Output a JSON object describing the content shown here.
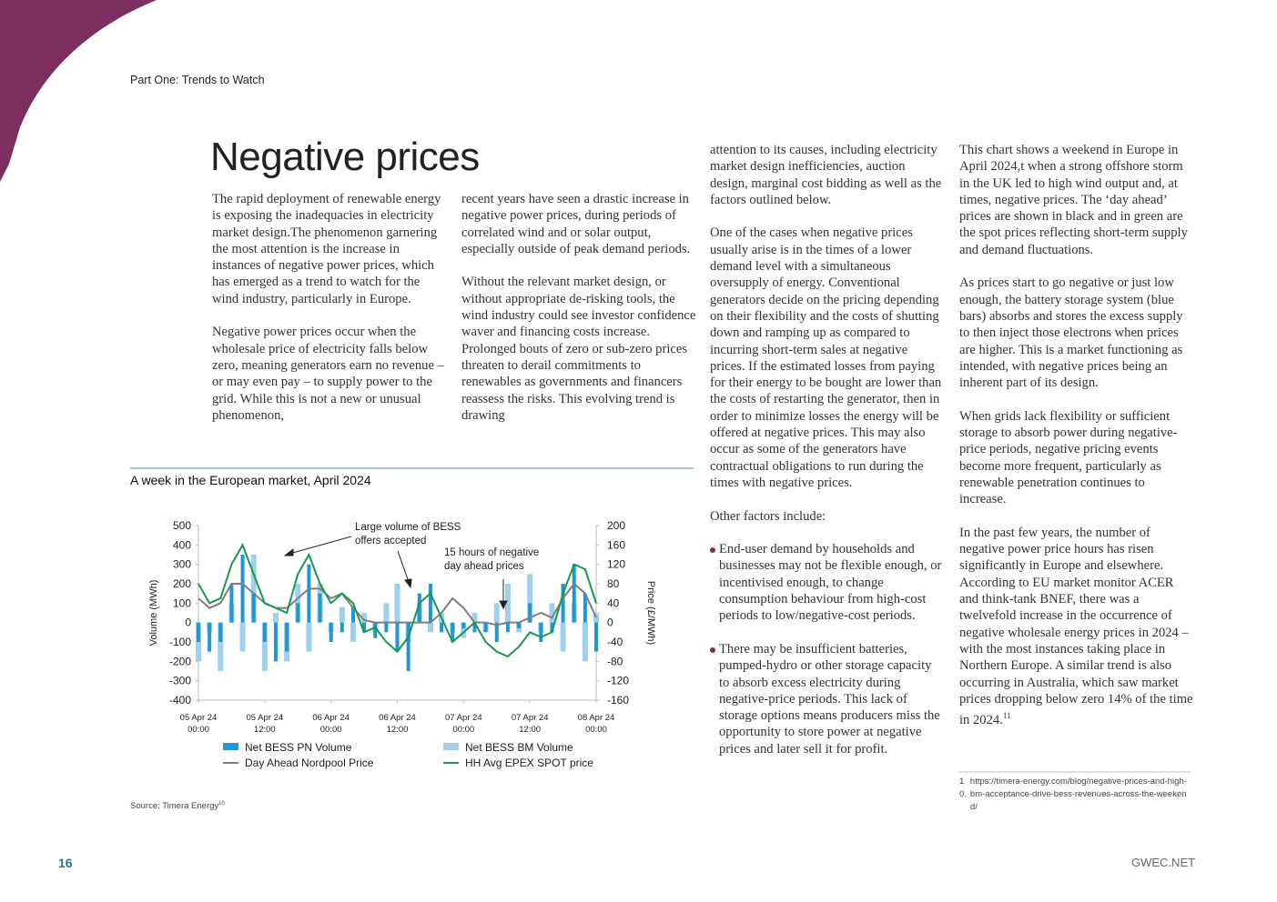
{
  "header": "Part One: Trends to Watch",
  "title": "Negative prices",
  "columns": [
    {
      "blocks": [
        {
          "text": "The rapid deployment of renewable energy is exposing the inadequacies in electricity market design.The phenomenon garnering the most attention is the increase in instances of negative power prices, which has emerged as a trend to watch for the wind industry, particularly in Europe."
        },
        {
          "text": "Negative power prices occur when the wholesale price of electricity falls below zero, meaning generators earn no revenue – or may even pay – to supply power to the grid. While this is not a new or unusual phenomenon,"
        }
      ]
    },
    {
      "blocks": [
        {
          "text": "recent years have seen a drastic increase in negative power prices, during periods of correlated wind and or solar output, especially outside of peak demand periods."
        },
        {
          "text": "Without the relevant market design, or without appropriate de-risking tools, the wind industry could see investor confidence waver and financing costs increase. Prolonged bouts of zero or sub-zero prices threaten to derail commitments to renewables as governments and financers reassess the risks. This evolving trend is drawing"
        }
      ]
    },
    {
      "blocks": [
        {
          "text": "attention to its causes, including electricity market design inefficiencies, auction design, marginal cost bidding as well as the factors outlined below."
        },
        {
          "text": "One of the cases when negative prices usually arise is in the times of a lower demand level with a simultaneous oversupply of energy. Conventional generators decide on the pricing depending on their flexibility and the costs of shutting down and ramping up as compared to incurring short-term sales at negative prices. If the estimated losses from paying for their energy to be bought are lower than the costs of restarting the generator, then in order to minimize losses the energy will be offered at negative prices. This may also occur as some of the generators have contractual obligations to run during the times with negative prices."
        },
        {
          "text": "Other factors include:"
        },
        {
          "bullet": "End-user demand by households and businesses may not be flexible enough, or incentivised enough, to change consumption behaviour from high-cost periods to low/negative-cost periods."
        },
        {
          "bullet": "There may be insufficient batteries, pumped-hydro or other storage capacity to absorb excess electricity during negative-price periods. This lack of storage options means producers miss the opportunity to store power at negative prices and later sell it for profit."
        }
      ]
    },
    {
      "blocks": [
        {
          "text": "This chart shows a weekend in Europe in April 2024,t when a strong offshore storm in the UK led to high wind output and, at times, negative prices. The ‘day ahead’ prices are shown in black and in green are the spot prices reflecting short-term supply and demand fluctuations."
        },
        {
          "text": "As prices start to go negative or just low enough, the battery storage system (blue bars) absorbs and stores the excess supply to then inject those electrons when prices are higher. This is a market functioning as intended, with negative prices being an inherent part of its design."
        },
        {
          "text": "When grids lack flexibility or sufficient storage to absorb power during negative-price periods, negative pricing events become more frequent, particularly as renewable penetration continues to increase."
        },
        {
          "text": "In the past few years, the number of negative power price hours has risen significantly in Europe and elsewhere. According to EU market monitor ACER and think-tank BNEF, there was a twelvefold increase in the occurrence of negative wholesale energy prices in 2024 – with the most instances taking place in Northern Europe. A similar trend is also occurring in Australia, which saw market prices dropping below zero 14% of the time in 2024.",
          "sup": "11"
        }
      ]
    }
  ],
  "footnote": {
    "number": "10.",
    "text": "https://timera-energy.com/blog/negative-prices-and-high-bm-acceptance-drive-bess-revenues-across-the-weekend/"
  },
  "page_number": "16",
  "site": "GWEC.NET",
  "chart_data": {
    "type": "bar",
    "title": "A week in the European market, April 2024",
    "y_label": "Volume (MWh)",
    "y2_label": "Price (£/MWh)",
    "source": "Source: Timera Energy",
    "source_ref": "10",
    "annotations": [
      "Large volume of BESS offers accepted",
      "15 hours of negative day ahead prices"
    ],
    "x": [
      0,
      2,
      4,
      6,
      8,
      10,
      12,
      14,
      16,
      18,
      20,
      22,
      24,
      26,
      28,
      30,
      32,
      34,
      36,
      38,
      40,
      42,
      44,
      46,
      48,
      50,
      52,
      54,
      56,
      58,
      60,
      62,
      64,
      66,
      68,
      70,
      72
    ],
    "xlim": [
      0,
      72
    ],
    "xticks": [
      {
        "value": 0,
        "label": "05 Apr 24\n00:00"
      },
      {
        "value": 12,
        "label": "05 Apr 24\n12:00"
      },
      {
        "value": 24,
        "label": "06 Apr 24\n00:00"
      },
      {
        "value": 36,
        "label": "06 Apr 24\n12:00"
      },
      {
        "value": 48,
        "label": "07 Apr 24\n00:00"
      },
      {
        "value": 60,
        "label": "07 Apr 24\n12:00"
      },
      {
        "value": 72,
        "label": "08 Apr 24\n00:00"
      }
    ],
    "ylim": [
      -400,
      500
    ],
    "yticks": [
      -400,
      -300,
      -200,
      -100,
      0,
      100,
      200,
      300,
      400,
      500
    ],
    "y2lim": [
      -160,
      200
    ],
    "y2ticks": [
      -160,
      -120,
      -80,
      -40,
      0,
      40,
      80,
      120,
      160,
      200
    ],
    "series": [
      {
        "name": "Net BESS BM Volume",
        "type": "bar",
        "color": "#9fd0ee",
        "values": [
          -200,
          -50,
          -250,
          100,
          -150,
          350,
          -250,
          50,
          -200,
          200,
          -150,
          200,
          -50,
          80,
          -100,
          50,
          -50,
          100,
          200,
          -100,
          100,
          -50,
          50,
          -50,
          -80,
          50,
          -50,
          100,
          200,
          -50,
          250,
          -50,
          100,
          -150,
          100,
          -200,
          50
        ]
      },
      {
        "name": "Net BESS PN Volume",
        "type": "bar",
        "color": "#1f97d3",
        "values": [
          -100,
          -150,
          -100,
          200,
          350,
          150,
          -100,
          -200,
          -150,
          100,
          300,
          150,
          -100,
          -50,
          80,
          -50,
          -80,
          -50,
          -150,
          -250,
          150,
          200,
          -50,
          -100,
          -30,
          -50,
          -50,
          -100,
          -50,
          -30,
          100,
          -100,
          -50,
          200,
          300,
          150,
          -150
        ]
      },
      {
        "name": "Day Ahead Nordpool Price",
        "type": "line",
        "axis": "y2",
        "color": "#7f7f7f",
        "values": [
          50,
          30,
          40,
          80,
          80,
          60,
          40,
          30,
          30,
          50,
          70,
          70,
          50,
          60,
          30,
          5,
          0,
          0,
          0,
          0,
          0,
          0,
          20,
          50,
          30,
          0,
          0,
          -5,
          0,
          0,
          10,
          20,
          10,
          50,
          80,
          60,
          10
        ]
      },
      {
        "name": "HH Avg EPEX SPOT price",
        "type": "line",
        "axis": "y2",
        "color": "#17994a",
        "values": [
          80,
          40,
          50,
          120,
          160,
          100,
          40,
          30,
          20,
          100,
          140,
          80,
          40,
          60,
          40,
          -20,
          -10,
          -40,
          -60,
          -30,
          40,
          60,
          10,
          -40,
          -20,
          0,
          -40,
          -60,
          -70,
          -50,
          -20,
          -30,
          -20,
          60,
          120,
          110,
          40
        ]
      }
    ],
    "legend_order": [
      1,
      0,
      2,
      3
    ]
  }
}
